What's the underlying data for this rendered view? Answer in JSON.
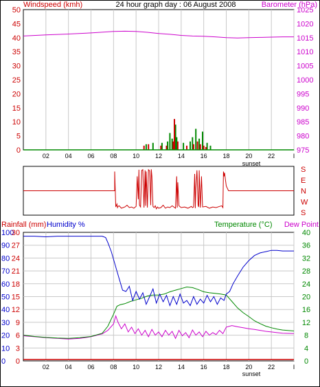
{
  "colors": {
    "wind": "#cc0000",
    "gust": "#008800",
    "barometer": "#cc00cc",
    "direction": "#cc0000",
    "rainfall": "#cc0000",
    "humidity": "#0000cc",
    "temperature": "#008800",
    "dewpoint": "#cc00cc",
    "grid": "#c8c8c8",
    "frame": "#000000",
    "axis_text": "#000000",
    "sunset": "#000000"
  },
  "time_ticks": [
    "02",
    "04",
    "06",
    "08",
    "10",
    "12",
    "14",
    "16",
    "18",
    "20",
    "22",
    "I"
  ],
  "sunset_label": "sunset",
  "chart_data": [
    {
      "id": "wind_baro",
      "type": "bar",
      "title": "24 hour graph day : 06 August 2008",
      "ylabel_left": "Windspeed (kmh)",
      "ylabel_right": "Barometer (hPa)",
      "x_range": [
        0,
        24
      ],
      "ylim_left": [
        0,
        50
      ],
      "ylim_right": [
        975,
        1025
      ],
      "yticks_left": [
        "50",
        "45",
        "40",
        "35",
        "30",
        "25",
        "20",
        "15",
        "10",
        "5",
        "0"
      ],
      "yticks_right": [
        "1025",
        "1020",
        "1015",
        "1010",
        "1005",
        "1000",
        "995",
        "990",
        "985",
        "980",
        "975"
      ],
      "grid": true,
      "series": [
        {
          "name": "Gust",
          "type": "bar",
          "data": [
            [
              10.9,
              2.0
            ],
            [
              11.5,
              2.5
            ],
            [
              12.3,
              2.5
            ],
            [
              12.8,
              3.0
            ],
            [
              13.0,
              6.0
            ],
            [
              13.2,
              4.0
            ],
            [
              13.5,
              9.0
            ],
            [
              13.6,
              4.5
            ],
            [
              14.2,
              2.5
            ],
            [
              14.8,
              3.0
            ],
            [
              15.0,
              4.5
            ],
            [
              15.3,
              7.5
            ],
            [
              15.6,
              4.0
            ],
            [
              15.9,
              6.5
            ],
            [
              16.3,
              2.5
            ],
            [
              16.6,
              1.5
            ]
          ]
        },
        {
          "name": "Wind",
          "type": "bar",
          "data": [
            [
              10.7,
              1.5
            ],
            [
              11.1,
              2.0
            ],
            [
              12.2,
              1.5
            ],
            [
              12.7,
              1.5
            ],
            [
              13.3,
              3.0
            ],
            [
              13.4,
              11.0
            ],
            [
              13.7,
              3.0
            ],
            [
              14.5,
              1.5
            ],
            [
              15.1,
              2.0
            ],
            [
              15.45,
              3.0
            ],
            [
              15.7,
              2.0
            ],
            [
              16.0,
              1.5
            ],
            [
              16.2,
              1.0
            ]
          ]
        },
        {
          "name": "Barometer",
          "type": "line",
          "axis": "right",
          "x": [
            0,
            2,
            4,
            6,
            8,
            9,
            10,
            11,
            12,
            13,
            14,
            15,
            16,
            17,
            18,
            19,
            20,
            21,
            22,
            23,
            24
          ],
          "y": [
            1015.6,
            1016.0,
            1016.3,
            1016.7,
            1017.2,
            1017.3,
            1017.2,
            1016.9,
            1016.5,
            1016.2,
            1015.8,
            1015.6,
            1015.5,
            1015.3,
            1015.0,
            1014.9,
            1015.0,
            1015.1,
            1015.2,
            1015.3,
            1015.3
          ]
        }
      ]
    },
    {
      "id": "direction",
      "type": "line",
      "ylabels_right": [
        "S",
        "E",
        "N",
        "W",
        "S"
      ],
      "ylim": [
        0,
        360
      ],
      "x_range": [
        0,
        24
      ],
      "series": [
        {
          "name": "Direction",
          "x": [
            0,
            8.1,
            8.1,
            8.2,
            8.3,
            8.35,
            8.4,
            8.5,
            8.7,
            9,
            9.2,
            9.4,
            9.6,
            9.8,
            10,
            10.1,
            10.2,
            10.25,
            10.3,
            10.4,
            10.5,
            10.6,
            10.7,
            10.8,
            10.85,
            10.9,
            11,
            11.1,
            11.2,
            11.3,
            11.35,
            11.4,
            11.5,
            11.6,
            11.7,
            11.8,
            11.9,
            12,
            12.2,
            12.4,
            12.6,
            12.8,
            13,
            13.2,
            13.5,
            13.6,
            13.65,
            13.7,
            13.8,
            14,
            14.3,
            14.6,
            14.9,
            15,
            15.1,
            15.2,
            15.25,
            15.3,
            15.4,
            15.5,
            15.55,
            15.6,
            15.7,
            15.8,
            15.9,
            16.2,
            16.5,
            16.8,
            17.1,
            17.4,
            17.6,
            17.7,
            17.75,
            17.8,
            17.85,
            17.9,
            18.0,
            18.1,
            18.2,
            24
          ],
          "y": [
            180,
            180,
            340,
            45,
            70,
            40,
            50,
            55,
            35,
            45,
            60,
            40,
            45,
            35,
            50,
            300,
            110,
            355,
            60,
            45,
            350,
            355,
            40,
            350,
            55,
            340,
            40,
            355,
            345,
            60,
            358,
            300,
            50,
            40,
            55,
            30,
            45,
            35,
            40,
            60,
            35,
            45,
            40,
            55,
            35,
            300,
            40,
            250,
            55,
            40,
            45,
            35,
            50,
            40,
            45,
            320,
            35,
            200,
            350,
            60,
            45,
            350,
            40,
            300,
            45,
            50,
            35,
            45,
            40,
            50,
            55,
            40,
            340,
            300,
            330,
            290,
            220,
            200,
            180,
            180
          ]
        }
      ]
    },
    {
      "id": "temp_hum_rain",
      "type": "line",
      "ylabel_left_1": "Rainfall (mm)",
      "ylabel_left_2": "Humidity %",
      "ylabel_right_1": "Temperature (°C)",
      "ylabel_right_2": "Dew Point",
      "x_range": [
        0,
        24
      ],
      "ylim_rain": [
        0,
        30
      ],
      "ylim_humidity": [
        0,
        100
      ],
      "ylim_temp": [
        0,
        40
      ],
      "yticks_humidity": [
        "100",
        "90",
        "80",
        "70",
        "60",
        "50",
        "40",
        "30",
        "20",
        "10",
        "0"
      ],
      "yticks_rain": [
        "30",
        "27",
        "24",
        "21",
        "18",
        "15",
        "12",
        "9",
        "6",
        "3",
        "0"
      ],
      "yticks_temp": [
        "40",
        "36",
        "32",
        "28",
        "24",
        "20",
        "16",
        "12",
        "8",
        "4",
        "0"
      ],
      "grid": true,
      "series": [
        {
          "name": "Humidity",
          "axis": "humidity",
          "x": [
            0,
            1,
            2,
            3,
            4,
            5,
            6,
            7,
            7.3,
            7.5,
            7.8,
            8.2,
            8.5,
            8.8,
            9.1,
            9.4,
            9.7,
            10,
            10.3,
            10.6,
            10.9,
            11.2,
            11.5,
            11.8,
            12.1,
            12.4,
            12.7,
            13,
            13.3,
            13.6,
            13.9,
            14.2,
            14.5,
            14.8,
            15.1,
            15.4,
            15.7,
            16,
            16.3,
            16.6,
            16.9,
            17.2,
            17.5,
            17.8,
            18,
            18.3,
            18.6,
            19,
            19.5,
            20,
            20.5,
            21,
            21.5,
            22,
            22.5,
            23,
            24
          ],
          "y": [
            97,
            97,
            96.5,
            97,
            97,
            97,
            97,
            97,
            96,
            92,
            85,
            73,
            64,
            55,
            54,
            58,
            47,
            54,
            48,
            53,
            44,
            50,
            56,
            45,
            52,
            46,
            51,
            43,
            50,
            44,
            52,
            45,
            47,
            43,
            50,
            44,
            48,
            45,
            51,
            46,
            50,
            44,
            49,
            47,
            52,
            54,
            60,
            66,
            73,
            78,
            82,
            84,
            85,
            86,
            86,
            85.5,
            85.5
          ]
        },
        {
          "name": "Temperature",
          "axis": "temp",
          "x": [
            0,
            1,
            2,
            3,
            4,
            5,
            6,
            7,
            7.5,
            8,
            8.3,
            8.6,
            9,
            9.5,
            10,
            10.5,
            11,
            11.5,
            12,
            12.5,
            13,
            13.5,
            14,
            14.5,
            15,
            15.5,
            16,
            16.5,
            17,
            17.5,
            18,
            18.5,
            19,
            19.5,
            20,
            20.5,
            21,
            21.5,
            22,
            22.5,
            23,
            24
          ],
          "y": [
            8.0,
            7.6,
            7.3,
            7.1,
            7.0,
            7.2,
            7.6,
            8.6,
            10.8,
            14.5,
            17.0,
            17.5,
            17.8,
            18.5,
            19.0,
            19.5,
            20.2,
            20.5,
            20.5,
            20.8,
            21.5,
            22.0,
            22.5,
            23.0,
            22.8,
            22.2,
            21.5,
            21.2,
            21.0,
            20.8,
            20.5,
            18.5,
            16.5,
            15.0,
            13.8,
            12.5,
            11.6,
            10.8,
            10.3,
            9.9,
            9.6,
            9.3
          ]
        },
        {
          "name": "Dew Point",
          "axis": "temp",
          "x": [
            0,
            1,
            2,
            3,
            4,
            5,
            6,
            7,
            7.5,
            8,
            8.2,
            8.4,
            8.7,
            9,
            9.3,
            9.6,
            9.9,
            10.2,
            10.5,
            10.8,
            11.1,
            11.4,
            11.7,
            12,
            12.3,
            12.6,
            12.9,
            13.2,
            13.5,
            13.8,
            14.1,
            14.4,
            14.7,
            15,
            15.3,
            15.6,
            15.9,
            16.2,
            16.5,
            16.8,
            17.1,
            17.4,
            17.7,
            18,
            18.5,
            19,
            19.5,
            20,
            20.5,
            21,
            21.5,
            22,
            22.5,
            23,
            24
          ],
          "y": [
            7.8,
            7.5,
            7.2,
            7.0,
            6.8,
            7.0,
            7.5,
            8.4,
            9.5,
            11.5,
            14.0,
            12.0,
            10.0,
            11.5,
            9.0,
            10.5,
            8.5,
            10.0,
            8.0,
            9.5,
            7.5,
            9.8,
            8.0,
            9.0,
            7.5,
            9.5,
            8.0,
            9.2,
            7.0,
            9.5,
            7.8,
            8.8,
            7.2,
            9.6,
            8.0,
            9.0,
            7.5,
            9.2,
            8.0,
            8.8,
            8.2,
            9.5,
            8.5,
            10.5,
            11.0,
            10.6,
            10.3,
            10.0,
            9.8,
            9.5,
            9.2,
            9.0,
            8.8,
            8.6,
            8.5
          ]
        },
        {
          "name": "Rainfall",
          "axis": "rain",
          "x": [
            0,
            24
          ],
          "y": [
            0,
            0
          ]
        }
      ]
    }
  ]
}
